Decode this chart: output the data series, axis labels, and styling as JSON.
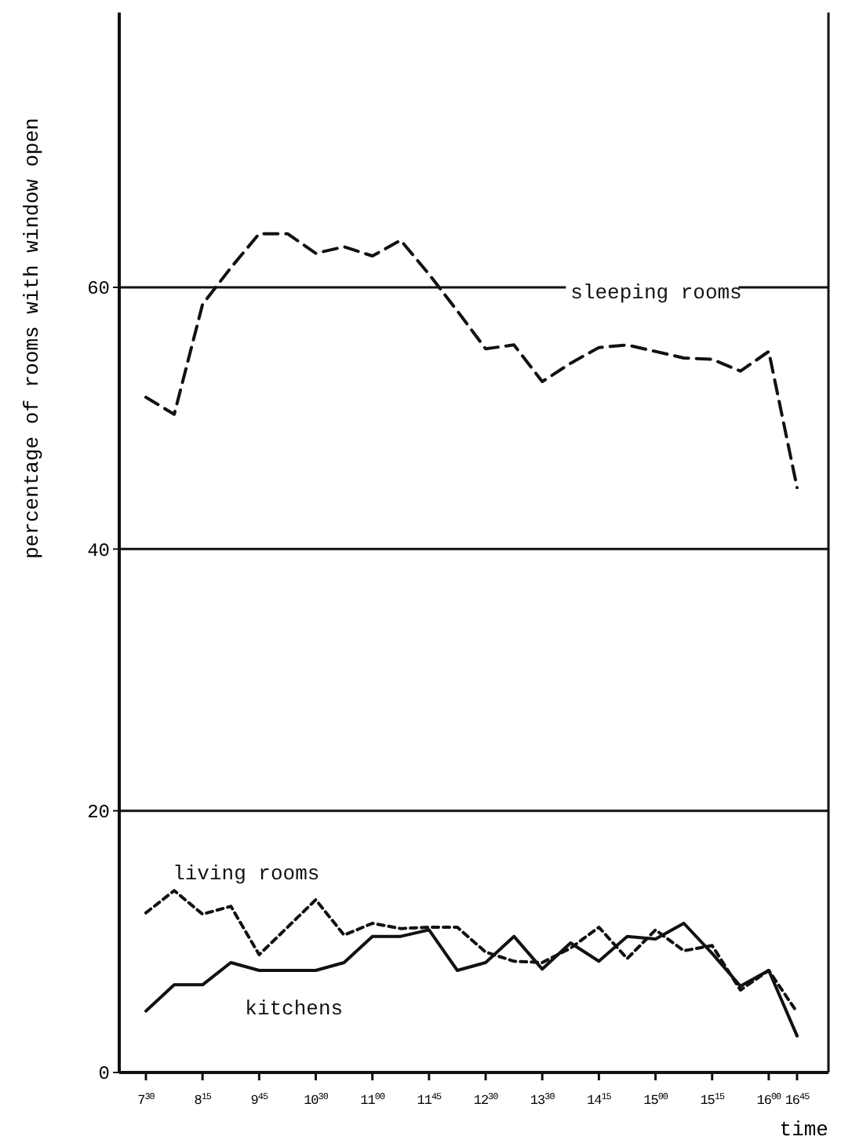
{
  "chart_data": {
    "type": "line",
    "xlabel": "time",
    "ylabel": "percentage of rooms with window open",
    "categories": [
      "7$^{30}$",
      null,
      "8$^{15}$",
      null,
      "9$^{45}$",
      null,
      "10$^{30}$",
      null,
      "11$^{00}$",
      null,
      "11$^{45}$",
      null,
      "12$^{30}$",
      null,
      "13$^{30}$",
      null,
      "14$^{15}$",
      null,
      "15$^{00}$",
      null,
      "15$^{15}$",
      null,
      "16$^{00}$",
      "16$^{45}$"
    ],
    "ylim": [
      0,
      81
    ],
    "yticks": [
      0,
      20,
      40,
      60
    ],
    "grid": "y",
    "marker": "none",
    "series": [
      {
        "name": "sleeping rooms",
        "color": "#111111",
        "line_style": "dashed",
        "values": [
          51.6,
          50.3,
          58.7,
          61.5,
          64.1,
          64.1,
          62.6,
          63.1,
          62.4,
          63.6,
          61.0,
          58.2,
          55.3,
          55.6,
          52.8,
          54.2,
          55.4,
          55.6,
          55.1,
          54.6,
          54.5,
          53.6,
          55.1,
          44.7
        ]
      },
      {
        "name": "living rooms",
        "color": "#111111",
        "line_style": "dotted",
        "values": [
          12.2,
          13.9,
          12.1,
          12.7,
          9.0,
          11.1,
          13.2,
          10.5,
          11.4,
          11.0,
          11.1,
          11.1,
          9.2,
          8.5,
          8.4,
          9.5,
          11.1,
          8.7,
          10.9,
          9.3,
          9.7,
          6.3,
          7.8,
          4.6
        ]
      },
      {
        "name": "kitchens",
        "color": "#111111",
        "line_style": "solid",
        "values": [
          4.7,
          6.7,
          6.7,
          8.4,
          7.8,
          7.8,
          7.8,
          8.4,
          10.4,
          10.4,
          10.9,
          7.8,
          8.4,
          10.4,
          7.9,
          9.9,
          8.5,
          10.4,
          10.2,
          11.4,
          9.1,
          6.6,
          7.8,
          2.8
        ]
      }
    ]
  }
}
